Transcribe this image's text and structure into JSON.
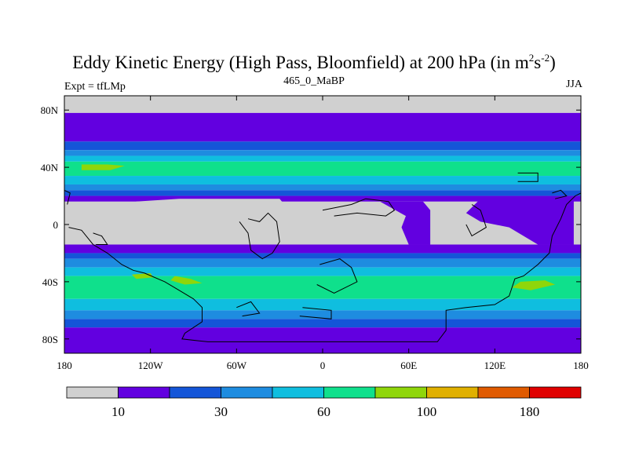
{
  "chart_data": {
    "type": "heatmap",
    "title": "Eddy Kinetic Energy (High Pass, Bloomfield) at 200 hPa (in m",
    "title_units": {
      "sup1": "2",
      "mid": "s",
      "sup2": "-2",
      "end": ")"
    },
    "subtitle": "465_0_MaBP",
    "left_note": "Expt = tfLMp",
    "right_note": "JJA",
    "xlabel": "",
    "ylabel": "",
    "xlim": [
      -180,
      180
    ],
    "ylim": [
      -90,
      90
    ],
    "x_ticks": [
      {
        "value": -180,
        "label": "180"
      },
      {
        "value": -120,
        "label": "120W"
      },
      {
        "value": -60,
        "label": "60W"
      },
      {
        "value": 0,
        "label": "0"
      },
      {
        "value": 60,
        "label": "60E"
      },
      {
        "value": 120,
        "label": "120E"
      },
      {
        "value": 180,
        "label": "180"
      }
    ],
    "y_ticks": [
      {
        "value": 80,
        "label": "80N"
      },
      {
        "value": 40,
        "label": "40N"
      },
      {
        "value": 0,
        "label": "0"
      },
      {
        "value": -40,
        "label": "40S"
      },
      {
        "value": -80,
        "label": "80S"
      }
    ],
    "colorbar": {
      "colors": [
        "#d0d0d0",
        "#6200e0",
        "#1455d8",
        "#1e8ce0",
        "#0fbedf",
        "#0fe08c",
        "#8fd60a",
        "#e0b000",
        "#e05a00",
        "#e00000"
      ],
      "labels": [
        {
          "after_index": 0,
          "text": "10"
        },
        {
          "after_index": 2,
          "text": "30"
        },
        {
          "after_index": 4,
          "text": "60"
        },
        {
          "after_index": 6,
          "text": "100"
        },
        {
          "after_index": 8,
          "text": "180"
        }
      ]
    },
    "bands": [
      {
        "lat_top": 90,
        "lat_bottom": 78,
        "level": 0
      },
      {
        "lat_top": 78,
        "lat_bottom": 58,
        "level": 1
      },
      {
        "lat_top": 58,
        "lat_bottom": 52,
        "level": 2
      },
      {
        "lat_top": 52,
        "lat_bottom": 48,
        "level": 3
      },
      {
        "lat_top": 48,
        "lat_bottom": 44,
        "level": 4
      },
      {
        "lat_top": 44,
        "lat_bottom": 34,
        "level": 5
      },
      {
        "lat_top": 34,
        "lat_bottom": 28,
        "level": 4
      },
      {
        "lat_top": 28,
        "lat_bottom": 24,
        "level": 3
      },
      {
        "lat_top": 24,
        "lat_bottom": 20,
        "level": 2
      },
      {
        "lat_top": 20,
        "lat_bottom": 16,
        "level": 1
      },
      {
        "lat_top": 16,
        "lat_bottom": -14,
        "level": 0
      },
      {
        "lat_top": -14,
        "lat_bottom": -20,
        "level": 1
      },
      {
        "lat_top": -20,
        "lat_bottom": -24,
        "level": 2
      },
      {
        "lat_top": -24,
        "lat_bottom": -30,
        "level": 3
      },
      {
        "lat_top": -30,
        "lat_bottom": -36,
        "level": 4
      },
      {
        "lat_top": -36,
        "lat_bottom": -52,
        "level": 5
      },
      {
        "lat_top": -52,
        "lat_bottom": -60,
        "level": 4
      },
      {
        "lat_top": -60,
        "lat_bottom": -66,
        "level": 3
      },
      {
        "lat_top": -66,
        "lat_bottom": -72,
        "level": 2
      },
      {
        "lat_top": -72,
        "lat_bottom": -90,
        "level": 1
      }
    ],
    "features": [
      {
        "level": 1,
        "points": [
          [
            40,
            16
          ],
          [
            70,
            16
          ],
          [
            75,
            10
          ],
          [
            75,
            -14
          ],
          [
            60,
            -14
          ],
          [
            55,
            -2
          ],
          [
            58,
            6
          ]
        ]
      },
      {
        "level": 1,
        "points": [
          [
            175,
            18
          ],
          [
            110,
            18
          ],
          [
            100,
            8
          ],
          [
            110,
            2
          ],
          [
            130,
            -2
          ],
          [
            150,
            -14
          ],
          [
            175,
            -14
          ]
        ]
      },
      {
        "level": 0,
        "points": [
          [
            -30,
            18
          ],
          [
            -100,
            18
          ],
          [
            -130,
            16
          ],
          [
            -130,
            -14
          ],
          [
            -60,
            -14
          ],
          [
            -30,
            -8
          ],
          [
            -20,
            6
          ]
        ]
      },
      {
        "level": 6,
        "points": [
          [
            -168,
            42
          ],
          [
            -150,
            42
          ],
          [
            -138,
            41
          ],
          [
            -148,
            38
          ],
          [
            -168,
            38
          ]
        ]
      },
      {
        "level": 6,
        "points": [
          [
            -133,
            -35
          ],
          [
            -120,
            -34
          ],
          [
            -118,
            -37
          ],
          [
            -130,
            -38
          ]
        ]
      },
      {
        "level": 6,
        "points": [
          [
            -103,
            -36
          ],
          [
            -92,
            -38
          ],
          [
            -84,
            -41
          ],
          [
            -96,
            -42
          ],
          [
            -106,
            -39
          ]
        ]
      },
      {
        "level": 6,
        "points": [
          [
            138,
            -40
          ],
          [
            155,
            -39
          ],
          [
            162,
            -42
          ],
          [
            145,
            -46
          ],
          [
            132,
            -44
          ]
        ]
      }
    ],
    "coastlines": [
      [
        [
          -177,
          -2
        ],
        [
          -168,
          -4
        ],
        [
          -160,
          -14
        ],
        [
          -150,
          -20
        ],
        [
          -140,
          -28
        ],
        [
          -132,
          -32
        ],
        [
          -124,
          -34
        ],
        [
          -110,
          -40
        ],
        [
          -100,
          -46
        ],
        [
          -90,
          -52
        ],
        [
          -84,
          -58
        ],
        [
          -84,
          -68
        ],
        [
          -90,
          -72
        ],
        [
          -96,
          -76
        ],
        [
          -98,
          -80
        ],
        [
          -80,
          -82
        ],
        [
          -20,
          -82
        ],
        [
          40,
          -82
        ],
        [
          80,
          -82
        ],
        [
          86,
          -74
        ],
        [
          86,
          -60
        ],
        [
          100,
          -58
        ],
        [
          120,
          -56
        ],
        [
          130,
          -50
        ],
        [
          134,
          -38
        ],
        [
          140,
          -36
        ],
        [
          150,
          -28
        ],
        [
          158,
          -20
        ],
        [
          160,
          -8
        ],
        [
          166,
          4
        ],
        [
          170,
          14
        ],
        [
          176,
          20
        ],
        [
          180,
          22
        ]
      ],
      [
        [
          -58,
          2
        ],
        [
          -52,
          -6
        ],
        [
          -50,
          -18
        ],
        [
          -42,
          -24
        ],
        [
          -35,
          -20
        ],
        [
          -30,
          -12
        ],
        [
          -32,
          2
        ],
        [
          -38,
          8
        ],
        [
          -44,
          2
        ],
        [
          -52,
          4
        ]
      ],
      [
        [
          -2,
          -28
        ],
        [
          12,
          -24
        ],
        [
          20,
          -30
        ],
        [
          24,
          -40
        ],
        [
          8,
          -48
        ],
        [
          -4,
          -42
        ]
      ],
      [
        [
          -14,
          -58
        ],
        [
          6,
          -60
        ],
        [
          6,
          -66
        ],
        [
          -16,
          -64
        ]
      ],
      [
        [
          -60,
          -58
        ],
        [
          -50,
          -54
        ],
        [
          -44,
          -62
        ],
        [
          -56,
          -64
        ]
      ],
      [
        [
          0,
          10
        ],
        [
          20,
          14
        ],
        [
          30,
          18
        ],
        [
          46,
          16
        ],
        [
          50,
          10
        ],
        [
          44,
          6
        ],
        [
          24,
          8
        ],
        [
          8,
          6
        ]
      ],
      [
        [
          136,
          36
        ],
        [
          150,
          36
        ],
        [
          150,
          30
        ],
        [
          136,
          30
        ]
      ],
      [
        [
          160,
          22
        ],
        [
          166,
          24
        ],
        [
          170,
          20
        ],
        [
          162,
          18
        ]
      ],
      [
        [
          104,
          14
        ],
        [
          110,
          10
        ],
        [
          114,
          -2
        ],
        [
          104,
          -8
        ],
        [
          100,
          0
        ]
      ],
      [
        [
          -180,
          24
        ],
        [
          -176,
          22
        ],
        [
          -178,
          14
        ]
      ],
      [
        [
          -160,
          -6
        ],
        [
          -154,
          -8
        ],
        [
          -150,
          -14
        ],
        [
          -158,
          -14
        ]
      ]
    ]
  }
}
